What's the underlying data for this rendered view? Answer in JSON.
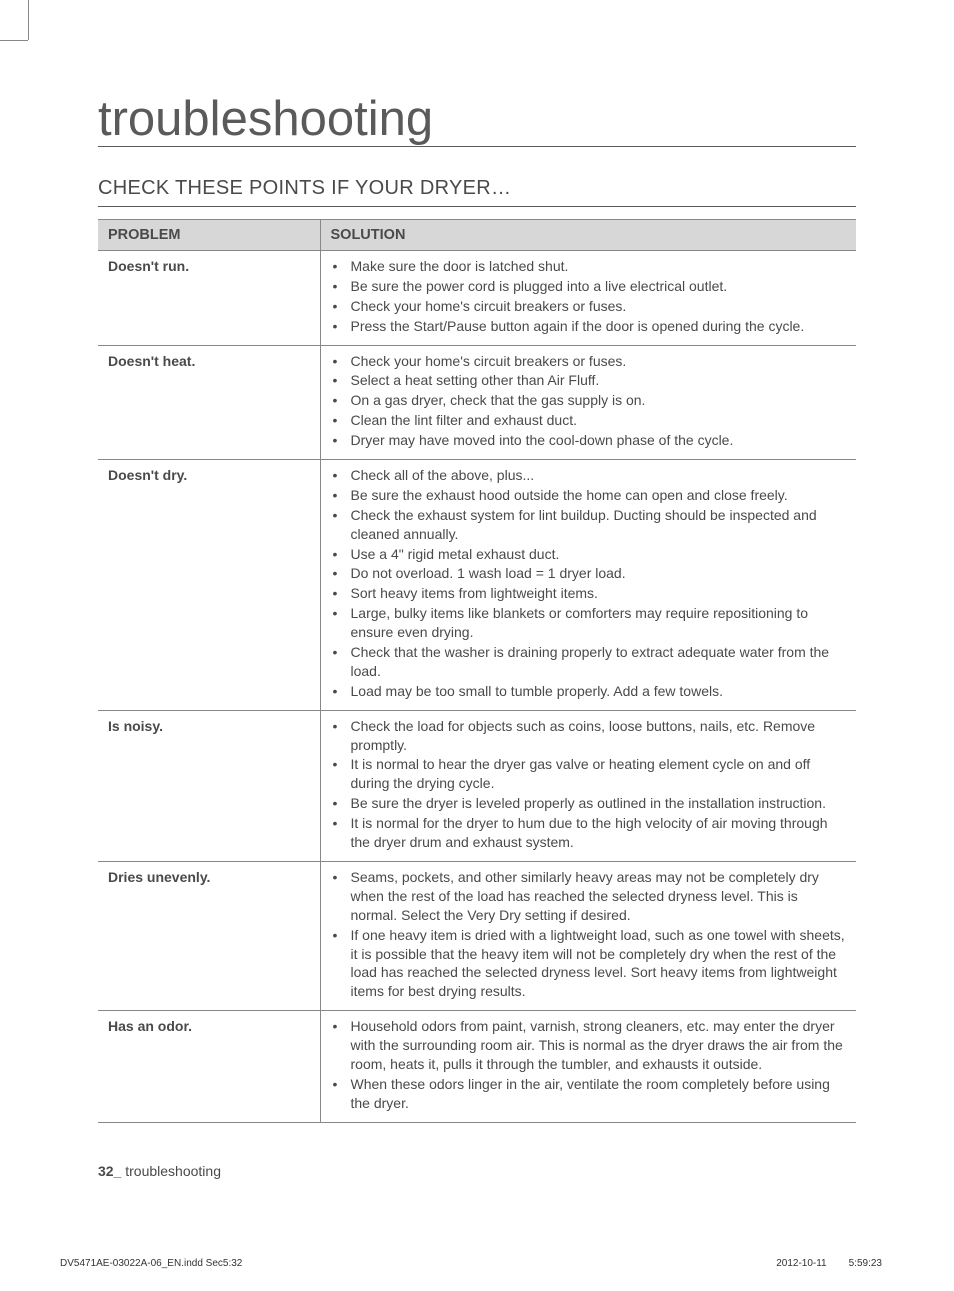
{
  "title": "troubleshooting",
  "subtitle": "CHECK THESE POINTS IF YOUR DRYER…",
  "table": {
    "headers": {
      "problem": "PROBLEM",
      "solution": "SOLUTION"
    },
    "rows": [
      {
        "problem": "Doesn't run.",
        "solutions": [
          "Make sure the door is latched shut.",
          "Be sure the power cord is plugged into a live electrical outlet.",
          "Check your home's circuit breakers or fuses.",
          "Press the Start/Pause button again if the door is opened during the cycle."
        ]
      },
      {
        "problem": "Doesn't heat.",
        "solutions": [
          "Check your home's circuit breakers or fuses.",
          "Select a heat setting other than Air Fluff.",
          "On a gas dryer, check that the gas supply is on.",
          "Clean the lint filter and exhaust duct.",
          "Dryer may have moved into the cool-down phase of the cycle."
        ]
      },
      {
        "problem": "Doesn't dry.",
        "solutions": [
          "Check all of the above, plus...",
          "Be sure the exhaust hood outside the home can open and close freely.",
          "Check the exhaust system for lint buildup. Ducting should be inspected and cleaned annually.",
          "Use a 4\" rigid metal exhaust duct.",
          "Do not overload. 1 wash load = 1 dryer load.",
          "Sort heavy items from lightweight items.",
          "Large, bulky items like blankets or comforters may require repositioning to ensure even drying.",
          "Check that the washer is draining properly to extract adequate water from the load.",
          "Load may be too small to tumble properly. Add a few towels."
        ]
      },
      {
        "problem": "Is noisy.",
        "solutions": [
          "Check the load for objects such as coins, loose buttons, nails, etc. Remove promptly.",
          "It is normal to hear the dryer gas valve or heating element cycle on and off during the drying cycle.",
          "Be sure the dryer is leveled properly as outlined in the installation instruction.",
          "It is normal for the dryer to hum due to the high velocity of air moving through the dryer drum and exhaust system."
        ]
      },
      {
        "problem": "Dries unevenly.",
        "solutions": [
          "Seams, pockets, and other similarly heavy areas may not be completely dry when the rest of the load has reached the selected dryness level. This is normal. Select the Very Dry setting if desired.",
          "If one heavy item is dried with a lightweight load, such as one towel with sheets, it is possible that the heavy item will not be completely dry when the rest of the load has reached the selected dryness level. Sort heavy items from lightweight items for best drying results."
        ]
      },
      {
        "problem": "Has an odor.",
        "solutions": [
          "Household odors from paint, varnish, strong cleaners, etc. may enter the dryer with the surrounding room air. This is normal as the dryer draws the air from the room, heats it, pulls it through the tumbler, and exhausts it outside.",
          "When these odors linger in the air, ventilate the room completely before using the dryer."
        ]
      }
    ]
  },
  "footer": {
    "page_num": "32_",
    "section": "troubleshooting"
  },
  "print_footer": {
    "file": "DV5471AE-03022A-06_EN.indd   Sec5:32",
    "date": "2012-10-11",
    "time": "5:59:23"
  }
}
